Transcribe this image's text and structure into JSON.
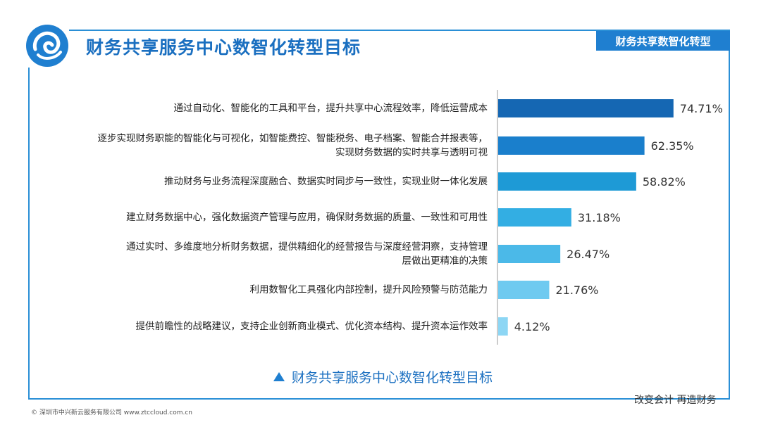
{
  "header": {
    "title": "财务共享服务中心数智化转型目标",
    "badge": "财务共享数智化转型"
  },
  "footer": {
    "slogan": "改变会计 再造财务",
    "copyright": "© 深圳市中兴新云服务有限公司 www.ztccloud.com.cn"
  },
  "colors": {
    "accent": "#1f7fd0",
    "title": "#1a6fc0"
  },
  "chart_data": {
    "type": "bar",
    "orientation": "horizontal",
    "title": "财务共享服务中心数智化转型目标",
    "categories": [
      [
        "通过自动化、智能化的工具和平台，提升共享中心流程效率，降低运营成本"
      ],
      [
        "逐步实现财务职能的智能化与可视化，如智能费控、智能税务、电子档案、智能合并报表等，",
        "实现财务数据的实时共享与透明可视"
      ],
      [
        "推动财务与业务流程深度融合、数据实时同步与一致性，实现业财一体化发展"
      ],
      [
        "建立财务数据中心，强化数据资产管理与应用，确保财务数据的质量、一致性和可用性"
      ],
      [
        "通过实时、多维度地分析财务数据，提供精细化的经营报告与深度经营洞察，支持管理",
        "层做出更精准的决策"
      ],
      [
        "利用数智化工具强化内部控制，提升风险预警与防范能力"
      ],
      [
        "提供前瞻性的战略建议，支持企业创新商业模式、优化资本结构、提升资本运作效率"
      ]
    ],
    "values": [
      74.71,
      62.35,
      58.82,
      31.18,
      26.47,
      21.76,
      4.12
    ],
    "value_labels": [
      "74.71%",
      "62.35%",
      "58.82%",
      "31.18%",
      "26.47%",
      "21.76%",
      "4.12%"
    ],
    "bar_colors": [
      "#1567b3",
      "#1a7fcc",
      "#1e9ad6",
      "#33aee3",
      "#4bb9e8",
      "#6fcaf0",
      "#8dd6f4"
    ],
    "xlim": [
      0,
      100
    ],
    "grid": false,
    "legend": "none"
  }
}
